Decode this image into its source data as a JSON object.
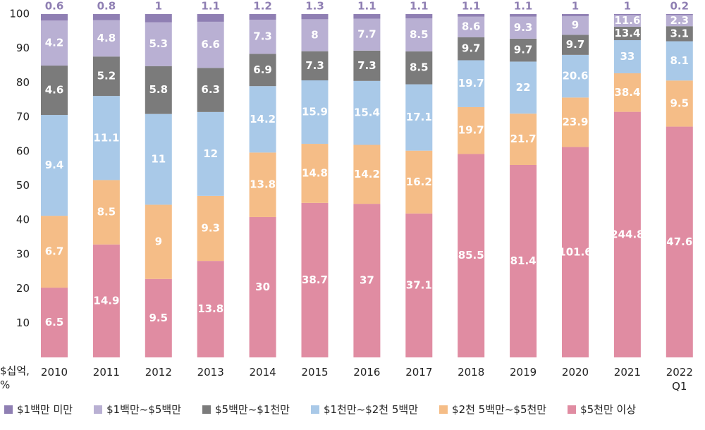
{
  "chart_data": {
    "type": "stacked_percent_bar",
    "y_axis_label": "$십억, %",
    "ylim": [
      0,
      100
    ],
    "yticks": [
      10,
      20,
      30,
      40,
      50,
      60,
      70,
      80,
      90,
      100
    ],
    "categories": [
      "2010",
      "2011",
      "2012",
      "2013",
      "2014",
      "2015",
      "2016",
      "2017",
      "2018",
      "2019",
      "2020",
      "2021",
      "2022 Q1"
    ],
    "series": [
      {
        "name": "$1백만 미만",
        "color": "#8f7fb3",
        "values": [
          0.6,
          0.8,
          1.0,
          1.1,
          1.2,
          1.3,
          1.1,
          1.1,
          1.1,
          1.1,
          1.0,
          1.0,
          0.2
        ]
      },
      {
        "name": "$1백만~$5백만",
        "color": "#b9b0d3",
        "values": [
          4.2,
          4.8,
          5.3,
          6.6,
          7.3,
          8.0,
          7.7,
          8.5,
          8.6,
          9.3,
          9.0,
          11.6,
          2.3
        ]
      },
      {
        "name": "$5백만~$1천만",
        "color": "#7b7b7b",
        "values": [
          4.6,
          5.2,
          5.8,
          6.3,
          6.9,
          7.3,
          7.3,
          8.5,
          9.7,
          9.7,
          9.7,
          13.4,
          3.1
        ]
      },
      {
        "name": "$1천만~$2천 5백만",
        "color": "#a9c9e8",
        "values": [
          9.4,
          11.1,
          11.0,
          12.0,
          14.2,
          15.9,
          15.4,
          17.1,
          19.7,
          22.0,
          20.6,
          33.0,
          8.1
        ]
      },
      {
        "name": "$2천 5백만~$5천만",
        "color": "#f5bd87",
        "values": [
          6.7,
          8.5,
          9.0,
          9.3,
          13.8,
          14.8,
          14.2,
          16.2,
          19.7,
          21.7,
          23.9,
          38.4,
          9.5
        ]
      },
      {
        "name": "$5천만 이상",
        "color": "#e08ca2",
        "values": [
          6.5,
          14.9,
          9.5,
          13.8,
          30.0,
          38.7,
          37.0,
          37.1,
          85.5,
          81.4,
          101.6,
          244.8,
          47.6
        ]
      }
    ]
  }
}
